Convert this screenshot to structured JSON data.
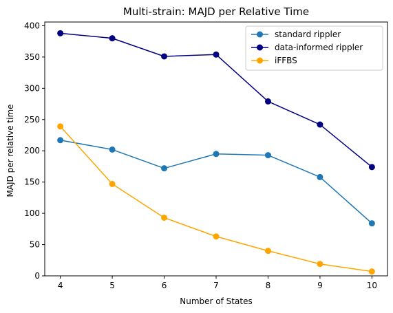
{
  "chart_data": {
    "type": "line",
    "title": "Multi-strain: MAJD per Relative Time",
    "xlabel": "Number of States",
    "ylabel": "MAJD per relative time",
    "x": [
      4,
      5,
      6,
      7,
      8,
      9,
      10
    ],
    "xlim": [
      3.7,
      10.3
    ],
    "ylim": [
      0,
      406
    ],
    "xticks": [
      4,
      5,
      6,
      7,
      8,
      9,
      10
    ],
    "yticks": [
      0,
      50,
      100,
      150,
      200,
      250,
      300,
      350,
      400
    ],
    "grid": false,
    "legend_position": "top-right",
    "series": [
      {
        "name": "standard rippler",
        "color": "#1f77b4",
        "values": [
          217,
          202,
          172,
          195,
          193,
          158,
          84
        ]
      },
      {
        "name": "data-informed rippler",
        "color": "#000080",
        "values": [
          388,
          380,
          351,
          354,
          279,
          242,
          174
        ]
      },
      {
        "name": "iFFBS",
        "color": "#ffa500",
        "values": [
          239,
          147,
          93,
          63,
          40,
          19,
          7
        ]
      }
    ]
  }
}
